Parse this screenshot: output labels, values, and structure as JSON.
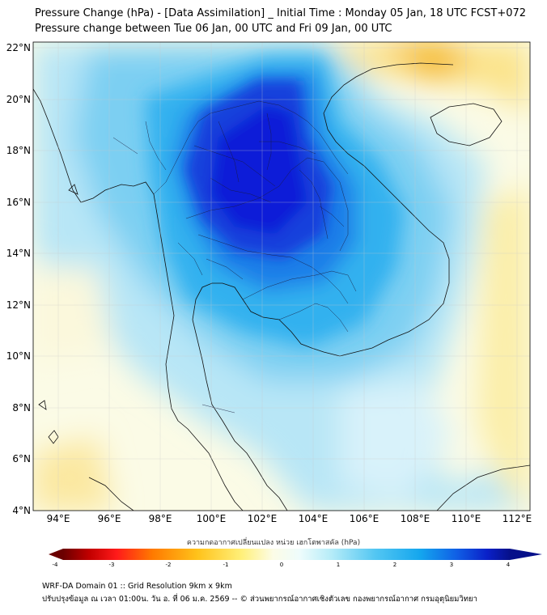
{
  "title": {
    "line1": "Pressure Change (hPa) - [Data Assimilation] _ Initial Time : Monday 05 Jan, 18 UTC FCST+072",
    "line2": "Pressure change between Tue 06 Jan, 00 UTC and Fri 09 Jan, 00 UTC"
  },
  "map": {
    "lat_ticks": [
      "22°N",
      "20°N",
      "18°N",
      "16°N",
      "14°N",
      "12°N",
      "10°N",
      "8°N",
      "6°N",
      "4°N"
    ],
    "lon_ticks": [
      "94°E",
      "96°E",
      "98°E",
      "100°E",
      "102°E",
      "104°E",
      "106°E",
      "108°E",
      "110°E",
      "112°E"
    ],
    "colors": {
      "strong_fall": "#0a1ed8",
      "fall": "#1e9bf0",
      "weak_fall": "#8fd6f5",
      "neutral": "#fbfbe6",
      "weak_rise": "#fbe67a",
      "rise": "#f5b71a"
    }
  },
  "colorbar": {
    "title": "ความกดอากาศเปลี่ยนแปลง หน่วย เฮกโตพาสคัล (hPa)",
    "tick_labels": [
      "-4",
      "-3",
      "-2",
      "-1",
      "0",
      "1",
      "2",
      "3",
      "4"
    ],
    "range": [
      -4,
      4
    ]
  },
  "footer": {
    "line1": "WRF-DA Domain 01 :: Grid Resolution 9km x 9km",
    "line2": "ปรับปรุงข้อมูล ณ เวลา 01:00น. วัน อ. ที่ 06 ม.ค. 2569 -- © ส่วนพยากรณ์อากาศเชิงตัวเลข กองพยากรณ์อากาศ กรมอุตุนิยมวิทยา"
  }
}
